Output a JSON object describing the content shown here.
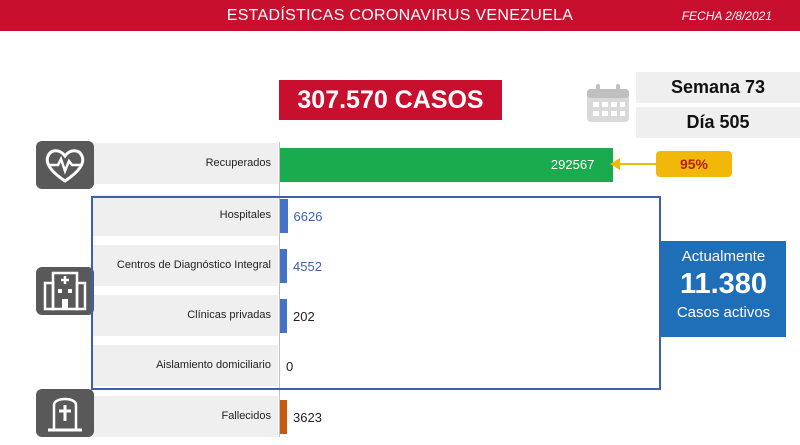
{
  "header": {
    "title": "ESTADÍSTICAS CORONAVIRUS VENEZUELA",
    "date": "FECHA 2/8/2021"
  },
  "total_cases": "307.570 CASOS",
  "week": "Semana 73",
  "day": "Día 505",
  "recovered_pct": "95%",
  "active": {
    "line1": "Actualmente",
    "number": "11.380",
    "line2": "Casos activos"
  },
  "icons": {
    "recovered": "heart-pulse-icon",
    "hospital": "hospital-icon",
    "deceased": "tombstone-icon",
    "calendar": "calendar-icon"
  },
  "colors": {
    "header": "#c8102e",
    "recovered": "#1aab4f",
    "hospital": "#4472c4",
    "deceased": "#c55a11",
    "active_box": "#1f6fb8",
    "pct_badge": "#f2b809"
  },
  "chart_data": {
    "type": "bar",
    "orientation": "horizontal",
    "categories": [
      "Recuperados",
      "Hospitales",
      "Centros de Diagnóstico Integral",
      "Clínicas privadas",
      "Aislamiento domiciliario",
      "Fallecidos"
    ],
    "values": [
      292567,
      6626,
      4552,
      202,
      0,
      3623
    ],
    "labels": [
      "292567",
      "6626",
      "4552",
      "202",
      "0",
      "3623"
    ],
    "xlim": [
      0,
      307570
    ]
  }
}
